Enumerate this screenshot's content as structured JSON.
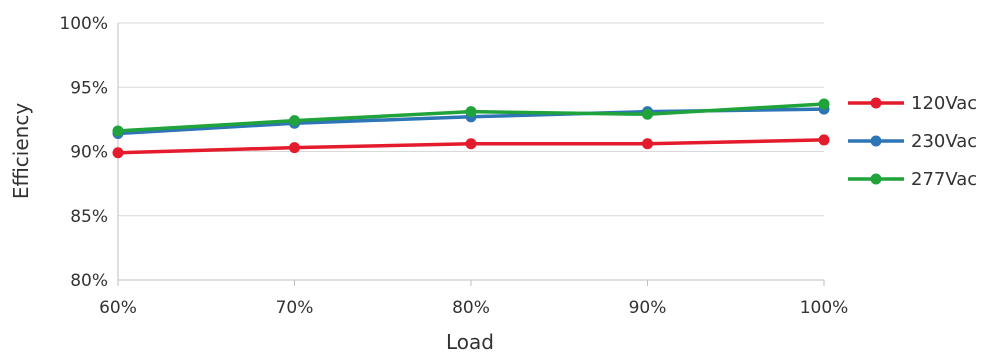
{
  "chart_data": {
    "type": "line",
    "title": "",
    "xlabel": "Load",
    "ylabel": "Efficiency",
    "categories": [
      "60%",
      "70%",
      "80%",
      "90%",
      "100%"
    ],
    "x": [
      60,
      70,
      80,
      90,
      100
    ],
    "xlim": [
      60,
      100
    ],
    "ylim": [
      80,
      100
    ],
    "yticks": [
      80,
      85,
      90,
      95,
      100
    ],
    "ytick_labels": [
      "80%",
      "85%",
      "90%",
      "95%",
      "100%"
    ],
    "grid": "horizontal",
    "legend_position": "right",
    "series": [
      {
        "name": "120Vac",
        "color": "#e31b2c",
        "values": [
          89.9,
          90.3,
          90.6,
          90.6,
          90.9
        ]
      },
      {
        "name": "230Vac",
        "color": "#2e75b6",
        "values": [
          91.4,
          92.2,
          92.7,
          93.1,
          93.3
        ]
      },
      {
        "name": "277Vac",
        "color": "#1fa33a",
        "values": [
          91.6,
          92.4,
          93.1,
          92.9,
          93.7
        ]
      }
    ]
  }
}
